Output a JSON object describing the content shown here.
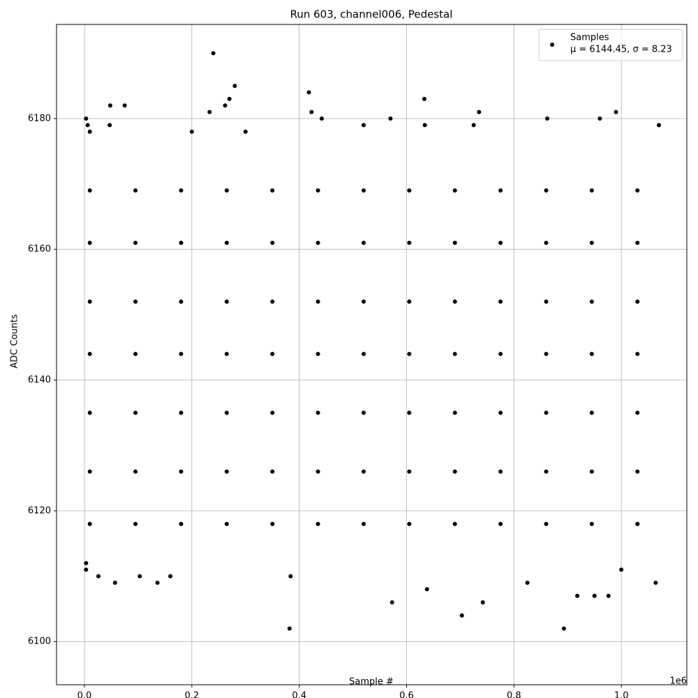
{
  "chart_data": {
    "type": "scatter",
    "title": "Run 603, channel006, Pedestal",
    "x_label": "Sample #",
    "y_label": "ADC Counts",
    "x_offset_label": "1e6",
    "legend_note": "μ = 6144.45, σ = 8.23",
    "legend_position": "upper right",
    "grid": true,
    "xlim": [
      -52000,
      1122000
    ],
    "ylim": [
      6093.4,
      6194.4
    ],
    "xticks": [
      {
        "value": 0,
        "label": "0.0"
      },
      {
        "value": 200000,
        "label": "0.2"
      },
      {
        "value": 400000,
        "label": "0.4"
      },
      {
        "value": 600000,
        "label": "0.6"
      },
      {
        "value": 800000,
        "label": "0.8"
      },
      {
        "value": 1000000,
        "label": "1.0"
      }
    ],
    "yticks": [
      6100,
      6120,
      6140,
      6160,
      6180
    ],
    "series": [
      {
        "name": "Samples",
        "color": "#000000",
        "x": [
          10000,
          95000,
          180000,
          265000,
          350000,
          435000,
          520000,
          605000,
          690000,
          775000,
          860000,
          945000,
          1030000,
          10000,
          95000,
          180000,
          265000,
          350000,
          435000,
          520000,
          605000,
          690000,
          775000,
          860000,
          945000,
          1030000,
          10000,
          95000,
          180000,
          265000,
          350000,
          435000,
          520000,
          605000,
          690000,
          775000,
          860000,
          945000,
          1030000,
          10000,
          95000,
          180000,
          265000,
          350000,
          435000,
          520000,
          605000,
          690000,
          775000,
          860000,
          945000,
          1030000,
          10000,
          95000,
          180000,
          265000,
          350000,
          435000,
          520000,
          605000,
          690000,
          775000,
          860000,
          945000,
          1030000,
          10000,
          95000,
          180000,
          265000,
          350000,
          435000,
          520000,
          605000,
          690000,
          775000,
          860000,
          945000,
          1030000,
          10000,
          95000,
          180000,
          265000,
          350000,
          435000,
          520000,
          605000,
          690000,
          775000,
          860000,
          945000,
          1030000,
          3000,
          3000,
          3000,
          6000,
          10000,
          26000,
          48000,
          47000,
          57000,
          75000,
          136000,
          240000,
          233000,
          262000,
          270000,
          280000,
          384000,
          382000,
          418000,
          423000,
          442000,
          573000,
          570000,
          633000,
          638000,
          634000,
          735000,
          703000,
          742000,
          862000,
          893000,
          918000,
          950000,
          976000,
          990000,
          1064000,
          1070000,
          960000,
          725000,
          520000,
          300000,
          160000,
          200000,
          103000,
          1000000,
          825000
        ],
        "values": [
          6118,
          6118,
          6118,
          6118,
          6118,
          6118,
          6118,
          6118,
          6118,
          6118,
          6118,
          6118,
          6118,
          6126,
          6126,
          6126,
          6126,
          6126,
          6126,
          6126,
          6126,
          6126,
          6126,
          6126,
          6126,
          6126,
          6135,
          6135,
          6135,
          6135,
          6135,
          6135,
          6135,
          6135,
          6135,
          6135,
          6135,
          6135,
          6135,
          6144,
          6144,
          6144,
          6144,
          6144,
          6144,
          6144,
          6144,
          6144,
          6144,
          6144,
          6144,
          6144,
          6152,
          6152,
          6152,
          6152,
          6152,
          6152,
          6152,
          6152,
          6152,
          6152,
          6152,
          6152,
          6152,
          6161,
          6161,
          6161,
          6161,
          6161,
          6161,
          6161,
          6161,
          6161,
          6161,
          6161,
          6161,
          6161,
          6169,
          6169,
          6169,
          6169,
          6169,
          6169,
          6169,
          6169,
          6169,
          6169,
          6169,
          6169,
          6169,
          6111,
          6112,
          6180,
          6179,
          6178,
          6110,
          6182,
          6179,
          6109,
          6182,
          6109,
          6190,
          6181,
          6182,
          6183,
          6185,
          6110,
          6102,
          6184,
          6181,
          6180,
          6106,
          6180,
          6183,
          6108,
          6179,
          6181,
          6104,
          6106,
          6180,
          6102,
          6107,
          6107,
          6107,
          6181,
          6109,
          6179,
          6180,
          6179,
          6179,
          6178,
          6110,
          6178,
          6110,
          6111,
          6109
        ]
      }
    ]
  }
}
